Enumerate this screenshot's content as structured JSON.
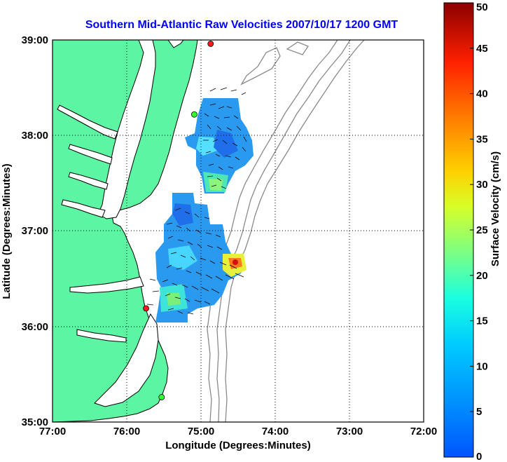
{
  "title": "Southern Mid-Atlantic Raw Velocities 2007/10/17 1200 GMT",
  "map": {
    "xlabel": "Longitude (Degrees:Minutes)",
    "ylabel": "Latitude (Degrees:Minutes)",
    "lon_range": [
      -77,
      -72
    ],
    "lat_range": [
      35,
      39
    ],
    "lon_ticks": [
      "77:00",
      "76:00",
      "75:00",
      "74:00",
      "73:00",
      "72:00"
    ],
    "lat_ticks": [
      "39:00",
      "38:00",
      "37:00",
      "36:00",
      "35:00"
    ],
    "grid": "dotted",
    "colors": {
      "land": "#5cf5a3",
      "coastline": "#000000",
      "bathymetry": "#8a8a8a",
      "station_active": "#ff1a1a",
      "station_inactive": "#33ff33"
    },
    "stations": [
      {
        "status": "active",
        "lon": -74.87,
        "lat": 38.96
      },
      {
        "status": "inactive",
        "lon": -75.09,
        "lat": 38.22
      },
      {
        "status": "active",
        "lon": -75.74,
        "lat": 36.19
      },
      {
        "status": "inactive",
        "lon": -75.53,
        "lat": 35.26
      }
    ],
    "velocity_regions": [
      {
        "name": "north",
        "lat_range": [
          37.4,
          38.45
        ],
        "lon_range": [
          -75.25,
          -74.55
        ]
      },
      {
        "name": "south",
        "lat_range": [
          36.05,
          37.4
        ],
        "lon_range": [
          -75.6,
          -74.3
        ]
      }
    ]
  },
  "colorbar": {
    "label": "Surface Velocity (cm/s)",
    "min": 0,
    "max": 50,
    "ticks": [
      "0",
      "5",
      "10",
      "15",
      "20",
      "25",
      "30",
      "35",
      "40",
      "45",
      "50"
    ],
    "colormap": "jet"
  }
}
